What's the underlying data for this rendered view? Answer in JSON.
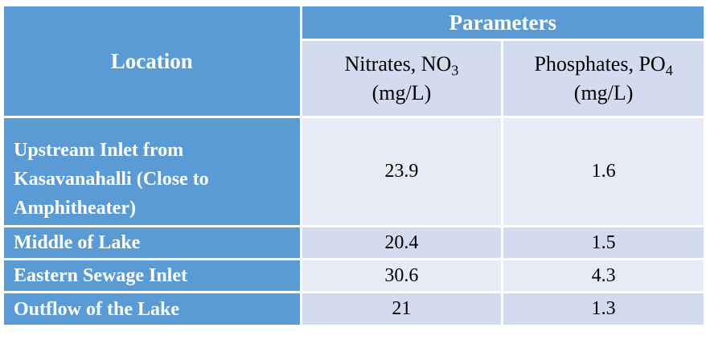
{
  "header": {
    "location": "Location",
    "parameters": "Parameters",
    "nitrates_prefix": "Nitrates, NO",
    "nitrates_sub": "3",
    "nitrates_unit": "(mg/L)",
    "phosphates_prefix": "Phosphates, PO",
    "phosphates_sub": "4",
    "phosphates_unit": "(mg/L)"
  },
  "rows": [
    {
      "location": "Upstream Inlet from Kasavanahalli (Close to Amphitheater)",
      "nitrates": "23.9",
      "phosphates": "1.6"
    },
    {
      "location": "Middle of Lake",
      "nitrates": "20.4",
      "phosphates": "1.5"
    },
    {
      "location": "Eastern Sewage Inlet",
      "nitrates": "30.6",
      "phosphates": "4.3"
    },
    {
      "location": "Outflow of the Lake",
      "nitrates": "21",
      "phosphates": "1.3"
    }
  ],
  "colors": {
    "header_blue": "#5b9bd5",
    "cell_light": "#e8ebf5",
    "cell_mid": "#d2dcee"
  }
}
